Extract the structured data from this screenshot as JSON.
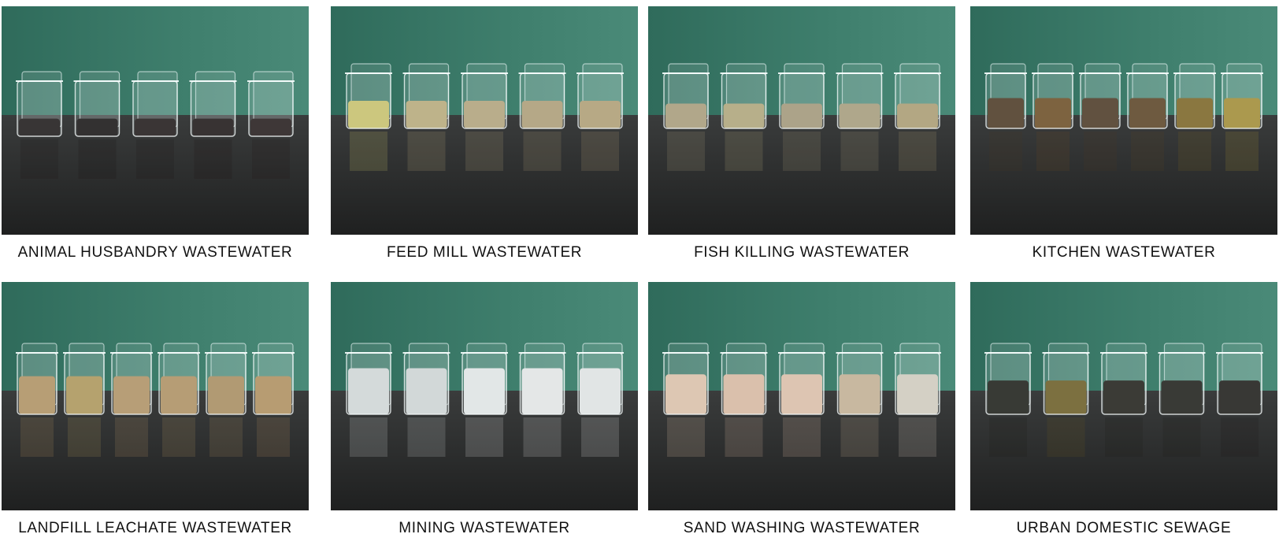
{
  "panels": [
    {
      "caption": "ANIMAL HUSBANDRY WASTEWATER"
    },
    {
      "caption": "FEED MILL WASTEWATER"
    },
    {
      "caption": "FISH KILLING WASTEWATER"
    },
    {
      "caption": "KITCHEN WASTEWATER"
    },
    {
      "caption": "LANDFILL LEACHATE WASTEWATER"
    },
    {
      "caption": "MINING WASTEWATER"
    },
    {
      "caption": "SAND WASHING WASTEWATER"
    },
    {
      "caption": "URBAN DOMESTIC SEWAGE"
    }
  ]
}
